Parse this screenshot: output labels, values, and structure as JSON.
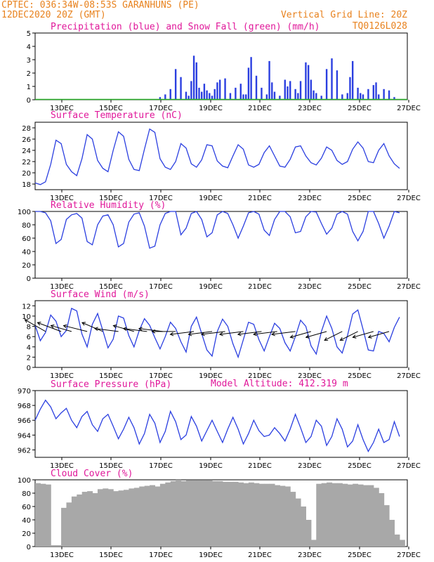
{
  "header": {
    "source_coords": "CPTEC:   036:34W-08:53S  GARANHUNS (PE)",
    "run_time": "12DEC2020 20Z (GMT)",
    "grid_note": "Vertical Grid Line: 20Z",
    "model_code": "TQ0126L028",
    "model_altitude": "Model Altitude: 412.319 m"
  },
  "colors": {
    "header": "#e8821e",
    "title": "#e0189a",
    "line": "#2b3fe0",
    "precip": "#2b3fe0",
    "snow": "#2bb02b",
    "cloud": "#a8a8a8",
    "wind_arrow": "#000000"
  },
  "x_ticks": [
    "13DEC",
    "15DEC",
    "17DEC",
    "19DEC",
    "21DEC",
    "23DEC",
    "25DEC",
    "27DEC"
  ],
  "chart_data": [
    {
      "id": "precip",
      "type": "bar",
      "title": "Precipitation (blue) and Snow Fall (green) (mm/h)",
      "ylim": [
        0,
        5
      ],
      "yticks": [
        "0",
        "1",
        "2",
        "3",
        "4",
        "5"
      ],
      "series": [
        {
          "x": [
            4.8,
            5.0,
            5.2,
            5.4,
            5.6,
            5.8,
            5.9,
            6.0,
            6.1,
            6.2,
            6.3,
            6.4,
            6.5,
            6.6,
            6.7,
            6.8,
            6.9,
            7.0,
            7.1,
            7.3,
            7.5,
            7.7,
            7.9,
            8.0,
            8.1,
            8.2,
            8.3,
            8.5,
            8.7,
            8.9,
            9.0,
            9.1,
            9.2,
            9.4,
            9.6,
            9.7,
            9.8,
            10.0,
            10.1,
            10.2,
            10.4,
            10.5,
            10.6,
            10.7,
            10.8,
            11.0,
            11.2,
            11.4,
            11.6,
            11.8,
            12.0,
            12.1,
            12.2,
            12.4,
            12.5,
            12.6,
            12.8,
            13.0,
            13.1,
            13.2,
            13.4,
            13.6,
            13.8
          ],
          "values": [
            0.2,
            0.4,
            0.8,
            2.3,
            1.7,
            0.6,
            0.3,
            1.4,
            3.3,
            2.8,
            0.9,
            0.6,
            1.2,
            0.7,
            0.5,
            0.3,
            0.8,
            1.3,
            1.5,
            1.6,
            0.5,
            0.9,
            1.2,
            0.4,
            0.4,
            2.4,
            3.2,
            1.8,
            0.9,
            0.4,
            2.9,
            1.3,
            0.6,
            0.3,
            1.5,
            1.0,
            1.4,
            0.8,
            0.5,
            1.4,
            2.8,
            2.6,
            1.5,
            0.7,
            0.5,
            0.3,
            2.3,
            3.1,
            2.2,
            0.4,
            0.5,
            1.7,
            2.9,
            0.9,
            0.5,
            0.4,
            0.8,
            1.1,
            1.3,
            0.4,
            0.8,
            0.7,
            0.2
          ]
        }
      ],
      "snow_values": [
        0
      ]
    },
    {
      "id": "temp",
      "type": "line",
      "title": "Surface Temperature (nC)",
      "ylim": [
        17,
        29
      ],
      "yticks": [
        "18",
        "20",
        "22",
        "24",
        "26",
        "28"
      ],
      "x": [
        0.0,
        0.2,
        0.4,
        0.6,
        0.8,
        1.0,
        1.2,
        1.4,
        1.6,
        1.8,
        2.0,
        2.2,
        2.4,
        2.6,
        2.8,
        3.0,
        3.2,
        3.4,
        3.6,
        3.8,
        4.0,
        4.2,
        4.4,
        4.6,
        4.8,
        5.0,
        5.2,
        5.4,
        5.6,
        5.8,
        6.0,
        6.2,
        6.4,
        6.6,
        6.8,
        7.0,
        7.2,
        7.4,
        7.6,
        7.8,
        8.0,
        8.2,
        8.4,
        8.6,
        8.8,
        9.0,
        9.2,
        9.4,
        9.6,
        9.8,
        10.0,
        10.2,
        10.4,
        10.6,
        10.8,
        11.0,
        11.2,
        11.4,
        11.6,
        11.8,
        12.0,
        12.2,
        12.4,
        12.6,
        12.8,
        13.0,
        13.2,
        13.4,
        13.6,
        13.8,
        14.0
      ],
      "values": [
        18.2,
        17.9,
        18.4,
        21.5,
        25.8,
        25.2,
        21.5,
        20.2,
        19.5,
        22.5,
        26.8,
        26.0,
        22.2,
        20.8,
        20.2,
        24.0,
        27.3,
        26.5,
        22.4,
        20.6,
        20.4,
        24.2,
        27.8,
        27.2,
        22.5,
        21.0,
        20.6,
        22.0,
        25.2,
        24.4,
        21.6,
        21.0,
        22.3,
        25.0,
        24.8,
        22.1,
        21.2,
        20.9,
        23.0,
        25.0,
        24.2,
        21.4,
        21.0,
        21.5,
        23.6,
        24.8,
        23.0,
        21.2,
        21.0,
        22.4,
        24.6,
        24.8,
        23.0,
        21.8,
        21.4,
        22.6,
        24.6,
        24.0,
        22.2,
        21.5,
        22.0,
        24.2,
        25.5,
        24.4,
        22.0,
        21.8,
        24.0,
        25.2,
        23.0,
        21.6,
        20.8
      ]
    },
    {
      "id": "rh",
      "type": "line",
      "title": "Relative Humidity (%)",
      "ylim": [
        0,
        100
      ],
      "yticks": [
        "0",
        "20",
        "40",
        "60",
        "80",
        "100"
      ],
      "x": [
        0.0,
        0.2,
        0.4,
        0.6,
        0.8,
        1.0,
        1.2,
        1.4,
        1.6,
        1.8,
        2.0,
        2.2,
        2.4,
        2.6,
        2.8,
        3.0,
        3.2,
        3.4,
        3.6,
        3.8,
        4.0,
        4.2,
        4.4,
        4.6,
        4.8,
        5.0,
        5.2,
        5.4,
        5.6,
        5.8,
        6.0,
        6.2,
        6.4,
        6.6,
        6.8,
        7.0,
        7.2,
        7.4,
        7.6,
        7.8,
        8.0,
        8.2,
        8.4,
        8.6,
        8.8,
        9.0,
        9.2,
        9.4,
        9.6,
        9.8,
        10.0,
        10.2,
        10.4,
        10.6,
        10.8,
        11.0,
        11.2,
        11.4,
        11.6,
        11.8,
        12.0,
        12.2,
        12.4,
        12.6,
        12.8,
        13.0,
        13.2,
        13.4,
        13.6,
        13.8,
        14.0
      ],
      "values": [
        100,
        100,
        98,
        86,
        52,
        58,
        88,
        95,
        97,
        90,
        55,
        50,
        80,
        93,
        95,
        80,
        47,
        52,
        84,
        96,
        98,
        78,
        45,
        48,
        80,
        97,
        100,
        100,
        65,
        75,
        97,
        100,
        88,
        62,
        68,
        95,
        100,
        97,
        80,
        60,
        78,
        98,
        100,
        96,
        72,
        64,
        88,
        100,
        100,
        92,
        68,
        70,
        92,
        100,
        99,
        82,
        66,
        75,
        96,
        100,
        96,
        70,
        56,
        70,
        100,
        100,
        82,
        60,
        78,
        100,
        98
      ]
    },
    {
      "id": "wind",
      "type": "line",
      "title": "Surface Wind (m/s)",
      "ylim": [
        0,
        13
      ],
      "yticks": [
        "0",
        "2",
        "4",
        "6",
        "8",
        "10",
        "12"
      ],
      "x": [
        0.0,
        0.2,
        0.4,
        0.6,
        0.8,
        1.0,
        1.2,
        1.4,
        1.6,
        1.8,
        2.0,
        2.2,
        2.4,
        2.6,
        2.8,
        3.0,
        3.2,
        3.4,
        3.6,
        3.8,
        4.0,
        4.2,
        4.4,
        4.6,
        4.8,
        5.0,
        5.2,
        5.4,
        5.6,
        5.8,
        6.0,
        6.2,
        6.4,
        6.6,
        6.8,
        7.0,
        7.2,
        7.4,
        7.6,
        7.8,
        8.0,
        8.2,
        8.4,
        8.6,
        8.8,
        9.0,
        9.2,
        9.4,
        9.6,
        9.8,
        10.0,
        10.2,
        10.4,
        10.6,
        10.8,
        11.0,
        11.2,
        11.4,
        11.6,
        11.8,
        12.0,
        12.2,
        12.4,
        12.6,
        12.8,
        13.0,
        13.2,
        13.4,
        13.6,
        13.8,
        14.0
      ],
      "values": [
        8.2,
        5.2,
        6.8,
        10.2,
        9.0,
        6.0,
        7.2,
        11.5,
        11.0,
        6.5,
        4.0,
        8.4,
        10.5,
        7.2,
        3.8,
        5.5,
        10.0,
        9.6,
        6.2,
        4.0,
        7.2,
        9.5,
        8.2,
        5.8,
        3.6,
        6.0,
        8.8,
        7.6,
        5.0,
        3.0,
        8.0,
        9.8,
        6.6,
        3.4,
        2.2,
        7.0,
        9.4,
        8.0,
        4.6,
        2.0,
        5.4,
        8.8,
        8.4,
        5.4,
        3.2,
        6.0,
        8.6,
        7.6,
        4.8,
        3.2,
        6.0,
        9.2,
        8.0,
        4.2,
        2.6,
        7.0,
        10.0,
        7.6,
        4.0,
        2.8,
        6.2,
        10.4,
        11.2,
        7.4,
        3.4,
        3.2,
        7.0,
        6.6,
        5.0,
        7.8,
        9.8
      ],
      "arrows": [
        {
          "x": 0.4,
          "dx": -7,
          "dy": -4
        },
        {
          "x": 1.0,
          "dx": -8,
          "dy": -3
        },
        {
          "x": 1.4,
          "dx": -7,
          "dy": -2
        },
        {
          "x": 2.0,
          "dx": -8,
          "dy": -2
        },
        {
          "x": 2.6,
          "dx": -7,
          "dy": -3
        },
        {
          "x": 3.2,
          "dx": -8,
          "dy": -1
        },
        {
          "x": 3.8,
          "dx": -7,
          "dy": -2
        },
        {
          "x": 4.3,
          "dx": -8,
          "dy": -1
        },
        {
          "x": 4.9,
          "dx": -8,
          "dy": -1
        },
        {
          "x": 5.4,
          "dx": -8,
          "dy": 0
        },
        {
          "x": 6.1,
          "dx": -8,
          "dy": 1
        },
        {
          "x": 6.8,
          "dx": -8,
          "dy": 1
        },
        {
          "x": 7.3,
          "dx": -8,
          "dy": 1
        },
        {
          "x": 8.0,
          "dx": -8,
          "dy": 1
        },
        {
          "x": 8.7,
          "dx": -8,
          "dy": 1
        },
        {
          "x": 9.3,
          "dx": -8,
          "dy": 1
        },
        {
          "x": 10.0,
          "dx": -8,
          "dy": 1
        },
        {
          "x": 10.6,
          "dx": -7,
          "dy": 2
        },
        {
          "x": 11.2,
          "dx": -7,
          "dy": 2
        },
        {
          "x": 11.8,
          "dx": -6,
          "dy": 3
        },
        {
          "x": 12.4,
          "dx": -6,
          "dy": 3
        },
        {
          "x": 13.0,
          "dx": -7,
          "dy": 2
        },
        {
          "x": 13.6,
          "dx": -7,
          "dy": 2
        }
      ]
    },
    {
      "id": "pressure",
      "type": "line",
      "title": "Surface Pressure (hPa)",
      "ylim": [
        961,
        970
      ],
      "yticks": [
        "962",
        "964",
        "966",
        "968",
        "970"
      ],
      "x": [
        0.0,
        0.2,
        0.4,
        0.6,
        0.8,
        1.0,
        1.2,
        1.4,
        1.6,
        1.8,
        2.0,
        2.2,
        2.4,
        2.6,
        2.8,
        3.0,
        3.2,
        3.4,
        3.6,
        3.8,
        4.0,
        4.2,
        4.4,
        4.6,
        4.8,
        5.0,
        5.2,
        5.4,
        5.6,
        5.8,
        6.0,
        6.2,
        6.4,
        6.6,
        6.8,
        7.0,
        7.2,
        7.4,
        7.6,
        7.8,
        8.0,
        8.2,
        8.4,
        8.6,
        8.8,
        9.0,
        9.2,
        9.4,
        9.6,
        9.8,
        10.0,
        10.2,
        10.4,
        10.6,
        10.8,
        11.0,
        11.2,
        11.4,
        11.6,
        11.8,
        12.0,
        12.2,
        12.4,
        12.6,
        12.8,
        13.0,
        13.2,
        13.4,
        13.6,
        13.8,
        14.0
      ],
      "values": [
        966.0,
        967.5,
        968.7,
        967.8,
        966.2,
        967.0,
        967.6,
        966.0,
        965.0,
        966.5,
        967.2,
        965.4,
        964.5,
        966.2,
        966.8,
        965.2,
        963.5,
        964.8,
        966.4,
        965.0,
        962.8,
        964.2,
        966.8,
        965.6,
        963.0,
        964.5,
        967.2,
        965.8,
        963.4,
        964.0,
        966.5,
        965.2,
        963.2,
        964.6,
        966.0,
        964.5,
        963.0,
        964.8,
        966.4,
        964.8,
        962.8,
        964.2,
        966.0,
        964.6,
        963.8,
        964.0,
        965.0,
        964.2,
        963.2,
        964.8,
        966.8,
        965.0,
        963.0,
        963.8,
        966.0,
        965.2,
        962.6,
        963.8,
        966.2,
        964.8,
        962.4,
        963.2,
        965.4,
        963.4,
        961.8,
        963.0,
        964.8,
        963.0,
        963.4,
        965.8,
        963.8
      ]
    },
    {
      "id": "cloud",
      "type": "area",
      "title": "Cloud Cover (%)",
      "ylim": [
        0,
        100
      ],
      "yticks": [
        "0",
        "20",
        "40",
        "60",
        "80",
        "100"
      ],
      "x": [
        0.0,
        0.2,
        0.4,
        0.6,
        0.8,
        1.0,
        1.2,
        1.4,
        1.6,
        1.8,
        2.0,
        2.2,
        2.4,
        2.6,
        2.8,
        3.0,
        3.2,
        3.4,
        3.6,
        3.8,
        4.0,
        4.2,
        4.4,
        4.6,
        4.8,
        5.0,
        5.2,
        5.4,
        5.6,
        5.8,
        6.0,
        6.2,
        6.4,
        6.6,
        6.8,
        7.0,
        7.2,
        7.4,
        7.6,
        7.8,
        8.0,
        8.2,
        8.4,
        8.6,
        8.8,
        9.0,
        9.2,
        9.4,
        9.6,
        9.8,
        10.0,
        10.2,
        10.4,
        10.6,
        10.8,
        11.0,
        11.2,
        11.4,
        11.6,
        11.8,
        12.0,
        12.2,
        12.4,
        12.6,
        12.8,
        13.0,
        13.2,
        13.4,
        13.6,
        13.8,
        14.0
      ],
      "values": [
        95,
        94,
        93,
        2,
        2,
        58,
        66,
        75,
        78,
        82,
        83,
        80,
        86,
        87,
        86,
        83,
        84,
        85,
        87,
        88,
        90,
        91,
        92,
        90,
        94,
        96,
        98,
        100,
        98,
        99,
        99,
        99,
        99,
        99,
        98,
        98,
        97,
        97,
        97,
        96,
        95,
        96,
        95,
        94,
        94,
        94,
        92,
        91,
        90,
        82,
        72,
        60,
        40,
        10,
        94,
        95,
        96,
        95,
        95,
        94,
        93,
        94,
        93,
        92,
        92,
        88,
        80,
        62,
        40,
        18,
        10
      ]
    }
  ]
}
